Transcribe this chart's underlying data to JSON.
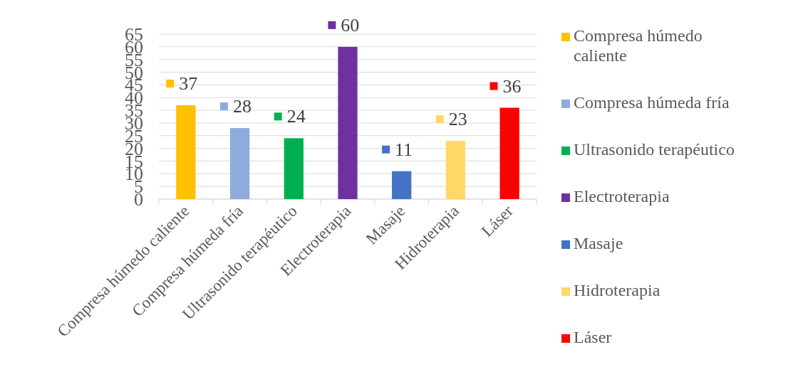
{
  "chart_data": {
    "type": "bar",
    "categories": [
      "Compresa húmedo caliente",
      "Compresa húmeda fría",
      "Ultrasonido terapéutico",
      "Electroterapia",
      "Masaje",
      "Hidroterapia",
      "Láser"
    ],
    "series": [
      {
        "name": "Compresa húmedo caliente",
        "color": "#ffc000",
        "values": [
          37,
          null,
          null,
          null,
          null,
          null,
          null
        ]
      },
      {
        "name": "Compresa húmeda fría",
        "color": "#8faadc",
        "values": [
          null,
          28,
          null,
          null,
          null,
          null,
          null
        ]
      },
      {
        "name": "Ultrasonido terapéutico",
        "color": "#00b050",
        "values": [
          null,
          null,
          24,
          null,
          null,
          null,
          null
        ]
      },
      {
        "name": "Electroterapia",
        "color": "#7030a0",
        "values": [
          null,
          null,
          null,
          60,
          null,
          null,
          null
        ]
      },
      {
        "name": "Masaje",
        "color": "#4472c4",
        "values": [
          null,
          null,
          null,
          null,
          11,
          null,
          null
        ]
      },
      {
        "name": "Hidroterapia",
        "color": "#ffd966",
        "values": [
          null,
          null,
          null,
          null,
          null,
          23,
          null
        ]
      },
      {
        "name": "Láser",
        "color": "#ff0000",
        "values": [
          null,
          null,
          null,
          null,
          null,
          null,
          36
        ]
      }
    ],
    "ylim": [
      0,
      65
    ],
    "yticks": [
      0,
      5,
      10,
      15,
      20,
      25,
      30,
      35,
      40,
      45,
      50,
      55,
      60,
      65
    ],
    "grid": "y",
    "legend": "right",
    "data_labels": true
  }
}
